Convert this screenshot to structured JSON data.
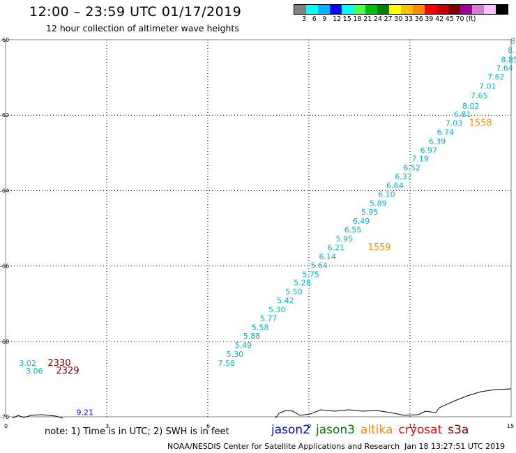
{
  "title": "12:00 – 23:59 UTC 01/17/2019",
  "subtitle": "12 hour collection of altimeter wave heights",
  "color_scale": {
    "unit": "(ft)",
    "swatches": [
      "#808080",
      "#00ffff",
      "#00b4ff",
      "#0000ff",
      "#00ffff",
      "#50ff50",
      "#00c000",
      "#008000",
      "#ffff00",
      "#ffc000",
      "#ff8c00",
      "#ff0000",
      "#c80000",
      "#800000",
      "#a000a0",
      "#d080d0",
      "#ffc0ff",
      "#000000"
    ],
    "labels": [
      "3",
      "6",
      "9",
      "12",
      "15",
      "18",
      "21",
      "24",
      "27",
      "30",
      "33",
      "36",
      "39",
      "42",
      "45",
      "70"
    ]
  },
  "axes": {
    "x_ticks": [
      {
        "v": 0,
        "t": "0"
      },
      {
        "v": 3,
        "t": "3"
      },
      {
        "v": 6,
        "t": "6"
      },
      {
        "v": 9,
        "t": "9"
      },
      {
        "v": 12,
        "t": "12"
      },
      {
        "v": 15,
        "t": "15"
      }
    ],
    "y_ticks": [
      {
        "v": -60,
        "t": "-60"
      },
      {
        "v": -62,
        "t": "-62"
      },
      {
        "v": -64,
        "t": "-64"
      },
      {
        "v": -66,
        "t": "-66"
      },
      {
        "v": -68,
        "t": "-68"
      },
      {
        "v": -70,
        "t": "-70"
      }
    ]
  },
  "observations": [
    {
      "lon": 14.98,
      "lat": -60.1,
      "text": "8",
      "color": "#00b4d8"
    },
    {
      "lon": 14.9,
      "lat": -60.35,
      "text": "8.",
      "color": "#00b4d8"
    },
    {
      "lon": 14.7,
      "lat": -60.6,
      "text": "8.85",
      "color": "#00b4d8"
    },
    {
      "lon": 14.55,
      "lat": -60.82,
      "text": "7.64",
      "color": "#00b4d8"
    },
    {
      "lon": 14.3,
      "lat": -61.05,
      "text": "7.62",
      "color": "#00b4d8"
    },
    {
      "lon": 14.05,
      "lat": -61.3,
      "text": "7.01",
      "color": "#00b4d8"
    },
    {
      "lon": 13.8,
      "lat": -61.55,
      "text": "7.65",
      "color": "#00b4d8"
    },
    {
      "lon": 13.55,
      "lat": -61.83,
      "text": "8.02",
      "color": "#00b4d8"
    },
    {
      "lon": 13.3,
      "lat": -62.05,
      "text": "6.81",
      "color": "#00b4d8"
    },
    {
      "lon": 13.05,
      "lat": -62.28,
      "text": "7.03",
      "color": "#00b4d8"
    },
    {
      "lon": 12.8,
      "lat": -62.52,
      "text": "6.74",
      "color": "#00b4d8"
    },
    {
      "lon": 12.55,
      "lat": -62.76,
      "text": "6.39",
      "color": "#00b4d8"
    },
    {
      "lon": 12.3,
      "lat": -63.0,
      "text": "6.97",
      "color": "#00b4d8"
    },
    {
      "lon": 12.05,
      "lat": -63.23,
      "text": "7.19",
      "color": "#00b4d8"
    },
    {
      "lon": 11.8,
      "lat": -63.47,
      "text": "6.52",
      "color": "#00b4d8"
    },
    {
      "lon": 11.55,
      "lat": -63.7,
      "text": "6.37",
      "color": "#00b4d8"
    },
    {
      "lon": 11.3,
      "lat": -63.94,
      "text": "6.64",
      "color": "#00b4d8"
    },
    {
      "lon": 11.05,
      "lat": -64.17,
      "text": "6.10",
      "color": "#00b4d8"
    },
    {
      "lon": 10.8,
      "lat": -64.41,
      "text": "5.89",
      "color": "#00b4d8"
    },
    {
      "lon": 10.55,
      "lat": -64.64,
      "text": "5.95",
      "color": "#00b4d8"
    },
    {
      "lon": 10.3,
      "lat": -64.88,
      "text": "6.49",
      "color": "#00b4d8"
    },
    {
      "lon": 10.05,
      "lat": -65.11,
      "text": "6.55",
      "color": "#00b4d8"
    },
    {
      "lon": 9.8,
      "lat": -65.35,
      "text": "5.95",
      "color": "#00b4d8"
    },
    {
      "lon": 9.55,
      "lat": -65.58,
      "text": "6.21",
      "color": "#00b4d8"
    },
    {
      "lon": 9.3,
      "lat": -65.82,
      "text": "6.14",
      "color": "#00b4d8"
    },
    {
      "lon": 9.05,
      "lat": -66.05,
      "text": "5.64",
      "color": "#00b4d8"
    },
    {
      "lon": 8.8,
      "lat": -66.29,
      "text": "5.75",
      "color": "#00b4d8"
    },
    {
      "lon": 8.55,
      "lat": -66.52,
      "text": "5.28",
      "color": "#00b4d8"
    },
    {
      "lon": 8.3,
      "lat": -66.76,
      "text": "5.50",
      "color": "#00b4d8"
    },
    {
      "lon": 8.05,
      "lat": -66.99,
      "text": "5.42",
      "color": "#00b4d8"
    },
    {
      "lon": 7.8,
      "lat": -67.23,
      "text": "5.30",
      "color": "#00b4d8"
    },
    {
      "lon": 7.55,
      "lat": -67.46,
      "text": "5.77",
      "color": "#00b4d8"
    },
    {
      "lon": 7.3,
      "lat": -67.7,
      "text": "5.58",
      "color": "#00b4d8"
    },
    {
      "lon": 7.05,
      "lat": -67.93,
      "text": "5.88",
      "color": "#00b4d8"
    },
    {
      "lon": 6.8,
      "lat": -68.17,
      "text": "5.49",
      "color": "#00b4d8"
    },
    {
      "lon": 6.55,
      "lat": -68.41,
      "text": "5.30",
      "color": "#00b4d8"
    },
    {
      "lon": 6.3,
      "lat": -68.65,
      "text": "7.58",
      "color": "#00b4d8"
    },
    {
      "lon": 0.4,
      "lat": -68.65,
      "text": "3.02",
      "color": "#00b4d8"
    },
    {
      "lon": 0.6,
      "lat": -68.85,
      "text": "3.06",
      "color": "#00b4d8"
    },
    {
      "lon": 2.1,
      "lat": -69.95,
      "text": "9.21",
      "color": "#0000ff"
    }
  ],
  "time_labels": [
    {
      "lon": 13.75,
      "lat": -62.28,
      "text": "1558",
      "color": "#ff8c00"
    },
    {
      "lon": 10.75,
      "lat": -65.58,
      "text": "1559",
      "color": "#ff8c00"
    },
    {
      "lon": 1.25,
      "lat": -68.65,
      "text": "2330",
      "color": "#800000"
    },
    {
      "lon": 1.5,
      "lat": -68.85,
      "text": "2329",
      "color": "#800000"
    }
  ],
  "note": "note: 1) Time is in UTC; 2) SWH is in feet",
  "missions": [
    {
      "name": "jason2",
      "color": "#0000ff"
    },
    {
      "name": "jason3",
      "color": "#008000"
    },
    {
      "name": "altika",
      "color": "#ff8c00"
    },
    {
      "name": "cryosat",
      "color": "#ff0000"
    },
    {
      "name": "s3a",
      "color": "#800000"
    }
  ],
  "credit": "NOAA/NESDIS Center for Satellite Applications and Research",
  "timestamp": "Jan 18 13:27:51 UTC 2019"
}
